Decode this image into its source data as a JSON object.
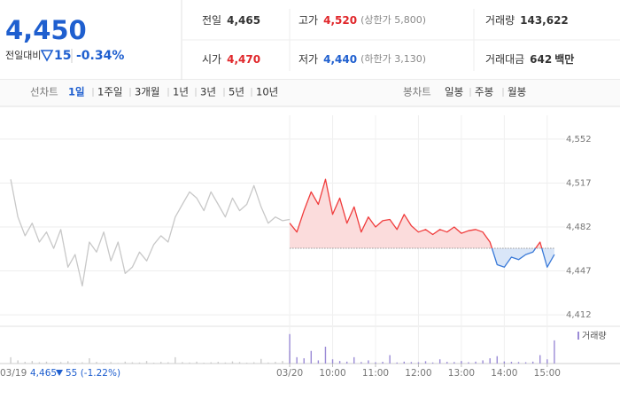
{
  "header": {
    "price": "4,450",
    "change_label": "전일대비",
    "change": "15",
    "change_rate": "-0.34%"
  },
  "stats": [
    {
      "label": "전일",
      "value": "4,465"
    },
    {
      "label": "고가",
      "value": "4,520",
      "note": "(상한가 5,800)"
    },
    {
      "label": "거래량",
      "value": "143,622"
    },
    {
      "label": "시가",
      "value": "4,470"
    },
    {
      "label": "저가",
      "value": "4,440",
      "note": "(하한가 3,130)"
    },
    {
      "label": "거래대금",
      "value": "642",
      "unit": "백만"
    }
  ],
  "tabs": {
    "line_label": "선차트",
    "line": [
      "1일",
      "1주일",
      "3개월",
      "1년",
      "3년",
      "5년",
      "10년"
    ],
    "candle_label": "봉차트",
    "candle": [
      "일봉",
      "주봉",
      "월봉"
    ]
  },
  "footer": {
    "date": "03/19",
    "price": "4,465",
    "change": "55 (-1.22%)"
  },
  "chart_data": {
    "type": "line",
    "xlim": [
      -405,
      385
    ],
    "xticks": [
      {
        "value": 0,
        "label": "03/20"
      },
      {
        "value": 60,
        "label": "10:00"
      },
      {
        "value": 120,
        "label": "11:00"
      },
      {
        "value": 180,
        "label": "12:00"
      },
      {
        "value": 240,
        "label": "13:00"
      },
      {
        "value": 300,
        "label": "14:00"
      },
      {
        "value": 360,
        "label": "15:00"
      }
    ],
    "ylim": [
      4405,
      4571
    ],
    "yticks": [
      {
        "value": 4412,
        "label": "4,412"
      },
      {
        "value": 4447,
        "label": "4,447"
      },
      {
        "value": 4482,
        "label": "4,482"
      },
      {
        "value": 4517,
        "label": "4,517"
      },
      {
        "value": 4552,
        "label": "4,552"
      }
    ],
    "grid": true,
    "baseline": 4465,
    "series": [
      {
        "color": "#c8c8c8",
        "x": [
          -390,
          -380,
          -370,
          -360,
          -350,
          -340,
          -330,
          -320,
          -310,
          -300,
          -290,
          -280,
          -270,
          -260,
          -250,
          -240,
          -230,
          -220,
          -210,
          -200,
          -190,
          -180,
          -170,
          -160,
          -150,
          -140,
          -130,
          -120,
          -110,
          -100,
          -90,
          -80,
          -70,
          -60,
          -50,
          -40,
          -30,
          -20,
          -10,
          0
        ],
        "values": [
          4520,
          4490,
          4475,
          4485,
          4470,
          4478,
          4465,
          4480,
          4450,
          4460,
          4435,
          4470,
          4462,
          4478,
          4455,
          4470,
          4445,
          4450,
          4462,
          4455,
          4468,
          4475,
          4470,
          4490,
          4500,
          4510,
          4505,
          4495,
          4510,
          4500,
          4490,
          4505,
          4495,
          4500,
          4515,
          4498,
          4485,
          4490,
          4487,
          4488
        ]
      },
      {
        "color": "#f03c3c",
        "down_color": "#3a7ad8",
        "fill": "#fbdcdc",
        "down_fill": "#d9e6f8",
        "x": [
          0,
          10,
          20,
          30,
          40,
          50,
          60,
          70,
          80,
          90,
          100,
          110,
          120,
          130,
          140,
          150,
          160,
          170,
          180,
          190,
          200,
          210,
          220,
          230,
          240,
          250,
          260,
          270,
          280,
          290,
          300,
          310,
          320,
          330,
          340,
          350,
          360,
          370
        ],
        "values": [
          4485,
          4478,
          4495,
          4510,
          4500,
          4520,
          4492,
          4505,
          4485,
          4498,
          4478,
          4490,
          4482,
          4487,
          4488,
          4480,
          4492,
          4483,
          4478,
          4480,
          4476,
          4480,
          4478,
          4482,
          4477,
          4479,
          4480,
          4478,
          4470,
          4452,
          4450,
          4458,
          4456,
          4460,
          4462,
          4470,
          4450,
          4460
        ]
      }
    ],
    "volume": {
      "name": "거래량",
      "color": "#9b8bd6",
      "ylim": [
        0,
        16000
      ],
      "series": [
        {
          "color": "#cccccc",
          "values": [
            3000,
            1500,
            800,
            1200,
            600,
            900,
            400,
            700,
            1100,
            500,
            600,
            2500,
            800,
            400,
            700,
            300,
            900,
            600,
            500,
            1200,
            400,
            800,
            600,
            3000,
            700,
            500,
            900,
            400,
            600,
            800,
            500,
            1000,
            700,
            400,
            600,
            2200,
            500,
            800,
            1200,
            6000
          ]
        },
        {
          "color": "#9b8bd6",
          "values": [
            14000,
            3000,
            2500,
            6000,
            1500,
            8000,
            2000,
            1200,
            900,
            3000,
            700,
            1500,
            600,
            800,
            4000,
            500,
            900,
            700,
            600,
            1100,
            500,
            2000,
            800,
            700,
            1200,
            600,
            900,
            1500,
            2500,
            3500,
            1000,
            800,
            700,
            600,
            900,
            4000,
            2000,
            11000
          ]
        }
      ]
    }
  }
}
